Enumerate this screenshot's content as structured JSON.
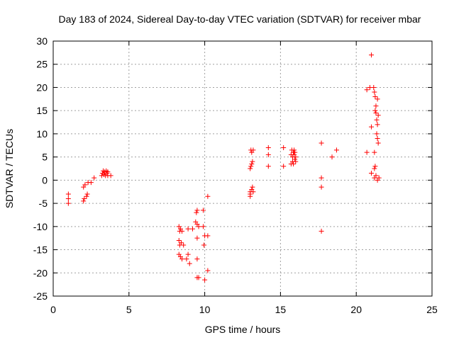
{
  "chart_data": {
    "type": "scatter",
    "title": "Day 183 of 2024, Sidereal Day-to-day VTEC variation (SDTVAR) for receiver mbar",
    "xlabel": "GPS time / hours",
    "ylabel": "SDTVAR / TECUs",
    "xlim": [
      0,
      25
    ],
    "ylim": [
      -25,
      30
    ],
    "xticks": [
      0,
      5,
      10,
      15,
      20,
      25
    ],
    "yticks": [
      -25,
      -20,
      -15,
      -10,
      -5,
      0,
      5,
      10,
      15,
      20,
      25,
      30
    ],
    "grid": true,
    "marker": "+",
    "color": "#ff0000",
    "series": [
      {
        "name": "SDTVAR",
        "points": [
          [
            1.0,
            -3.0
          ],
          [
            1.0,
            -4.0
          ],
          [
            1.0,
            -5.0
          ],
          [
            2.0,
            -4.5
          ],
          [
            2.0,
            -1.5
          ],
          [
            2.05,
            -4.0
          ],
          [
            2.1,
            -1.0
          ],
          [
            2.2,
            -3.5
          ],
          [
            2.25,
            -3.0
          ],
          [
            2.3,
            -0.5
          ],
          [
            2.5,
            -0.5
          ],
          [
            2.7,
            0.5
          ],
          [
            3.2,
            1.0
          ],
          [
            3.25,
            1.5
          ],
          [
            3.3,
            2.0
          ],
          [
            3.35,
            1.2
          ],
          [
            3.4,
            1.8
          ],
          [
            3.45,
            1.0
          ],
          [
            3.5,
            2.0
          ],
          [
            3.55,
            1.5
          ],
          [
            3.6,
            1.0
          ],
          [
            3.6,
            1.8
          ],
          [
            3.8,
            1.0
          ],
          [
            8.3,
            -10.0
          ],
          [
            8.3,
            -13.0
          ],
          [
            8.3,
            -16.0
          ],
          [
            8.35,
            -11.0
          ],
          [
            8.35,
            -14.0
          ],
          [
            8.4,
            -10.5
          ],
          [
            8.4,
            -16.5
          ],
          [
            8.45,
            -13.5
          ],
          [
            8.5,
            -11.0
          ],
          [
            8.5,
            -17.0
          ],
          [
            8.6,
            -14.0
          ],
          [
            8.8,
            -17.0
          ],
          [
            8.9,
            -10.5
          ],
          [
            8.9,
            -16.0
          ],
          [
            9.0,
            -18.0
          ],
          [
            9.2,
            -10.5
          ],
          [
            9.4,
            -9.0
          ],
          [
            9.45,
            -7.0
          ],
          [
            9.5,
            -6.5
          ],
          [
            9.5,
            -9.5
          ],
          [
            9.5,
            -12.5
          ],
          [
            9.5,
            -17.0
          ],
          [
            9.5,
            -21.0
          ],
          [
            9.6,
            -10.0
          ],
          [
            9.6,
            -21.0
          ],
          [
            9.9,
            -6.5
          ],
          [
            9.9,
            -10.0
          ],
          [
            9.95,
            -14.0
          ],
          [
            10.0,
            -12.0
          ],
          [
            10.0,
            -21.5
          ],
          [
            10.2,
            -3.5
          ],
          [
            10.2,
            -12.0
          ],
          [
            10.2,
            -19.5
          ],
          [
            13.0,
            -3.5
          ],
          [
            13.0,
            -3.0
          ],
          [
            13.0,
            -2.5
          ],
          [
            13.0,
            2.5
          ],
          [
            13.05,
            3.0
          ],
          [
            13.05,
            6.5
          ],
          [
            13.1,
            -2.0
          ],
          [
            13.1,
            3.5
          ],
          [
            13.1,
            6.0
          ],
          [
            13.15,
            -1.5
          ],
          [
            13.15,
            4.0
          ],
          [
            13.2,
            -2.5
          ],
          [
            13.2,
            6.5
          ],
          [
            14.2,
            3.0
          ],
          [
            14.2,
            5.5
          ],
          [
            14.2,
            7.0
          ],
          [
            15.2,
            3.0
          ],
          [
            15.2,
            7.0
          ],
          [
            15.7,
            3.5
          ],
          [
            15.7,
            5.5
          ],
          [
            15.75,
            6.5
          ],
          [
            15.8,
            4.0
          ],
          [
            15.8,
            5.0
          ],
          [
            15.85,
            6.0
          ],
          [
            15.85,
            3.5
          ],
          [
            15.9,
            5.5
          ],
          [
            15.9,
            6.5
          ],
          [
            15.95,
            4.5
          ],
          [
            15.95,
            6.0
          ],
          [
            16.0,
            5.0
          ],
          [
            16.0,
            4.0
          ],
          [
            17.7,
            8.0
          ],
          [
            17.7,
            0.5
          ],
          [
            17.7,
            -1.5
          ],
          [
            17.7,
            -11.0
          ],
          [
            18.4,
            5.0
          ],
          [
            18.7,
            6.5
          ],
          [
            20.7,
            19.5
          ],
          [
            20.7,
            6.0
          ],
          [
            20.9,
            20.0
          ],
          [
            21.0,
            27.0
          ],
          [
            21.0,
            11.5
          ],
          [
            21.0,
            1.5
          ],
          [
            21.15,
            20.0
          ],
          [
            21.2,
            19.0
          ],
          [
            21.2,
            6.0
          ],
          [
            21.2,
            2.5
          ],
          [
            21.2,
            0.5
          ],
          [
            21.25,
            18.0
          ],
          [
            21.25,
            15.0
          ],
          [
            21.25,
            3.0
          ],
          [
            21.3,
            16.0
          ],
          [
            21.3,
            14.5
          ],
          [
            21.3,
            1.0
          ],
          [
            21.35,
            13.0
          ],
          [
            21.35,
            10.0
          ],
          [
            21.4,
            17.5
          ],
          [
            21.4,
            12.0
          ],
          [
            21.4,
            9.0
          ],
          [
            21.4,
            0.0
          ],
          [
            21.45,
            14.0
          ],
          [
            21.45,
            8.0
          ],
          [
            21.5,
            0.5
          ]
        ]
      }
    ]
  }
}
